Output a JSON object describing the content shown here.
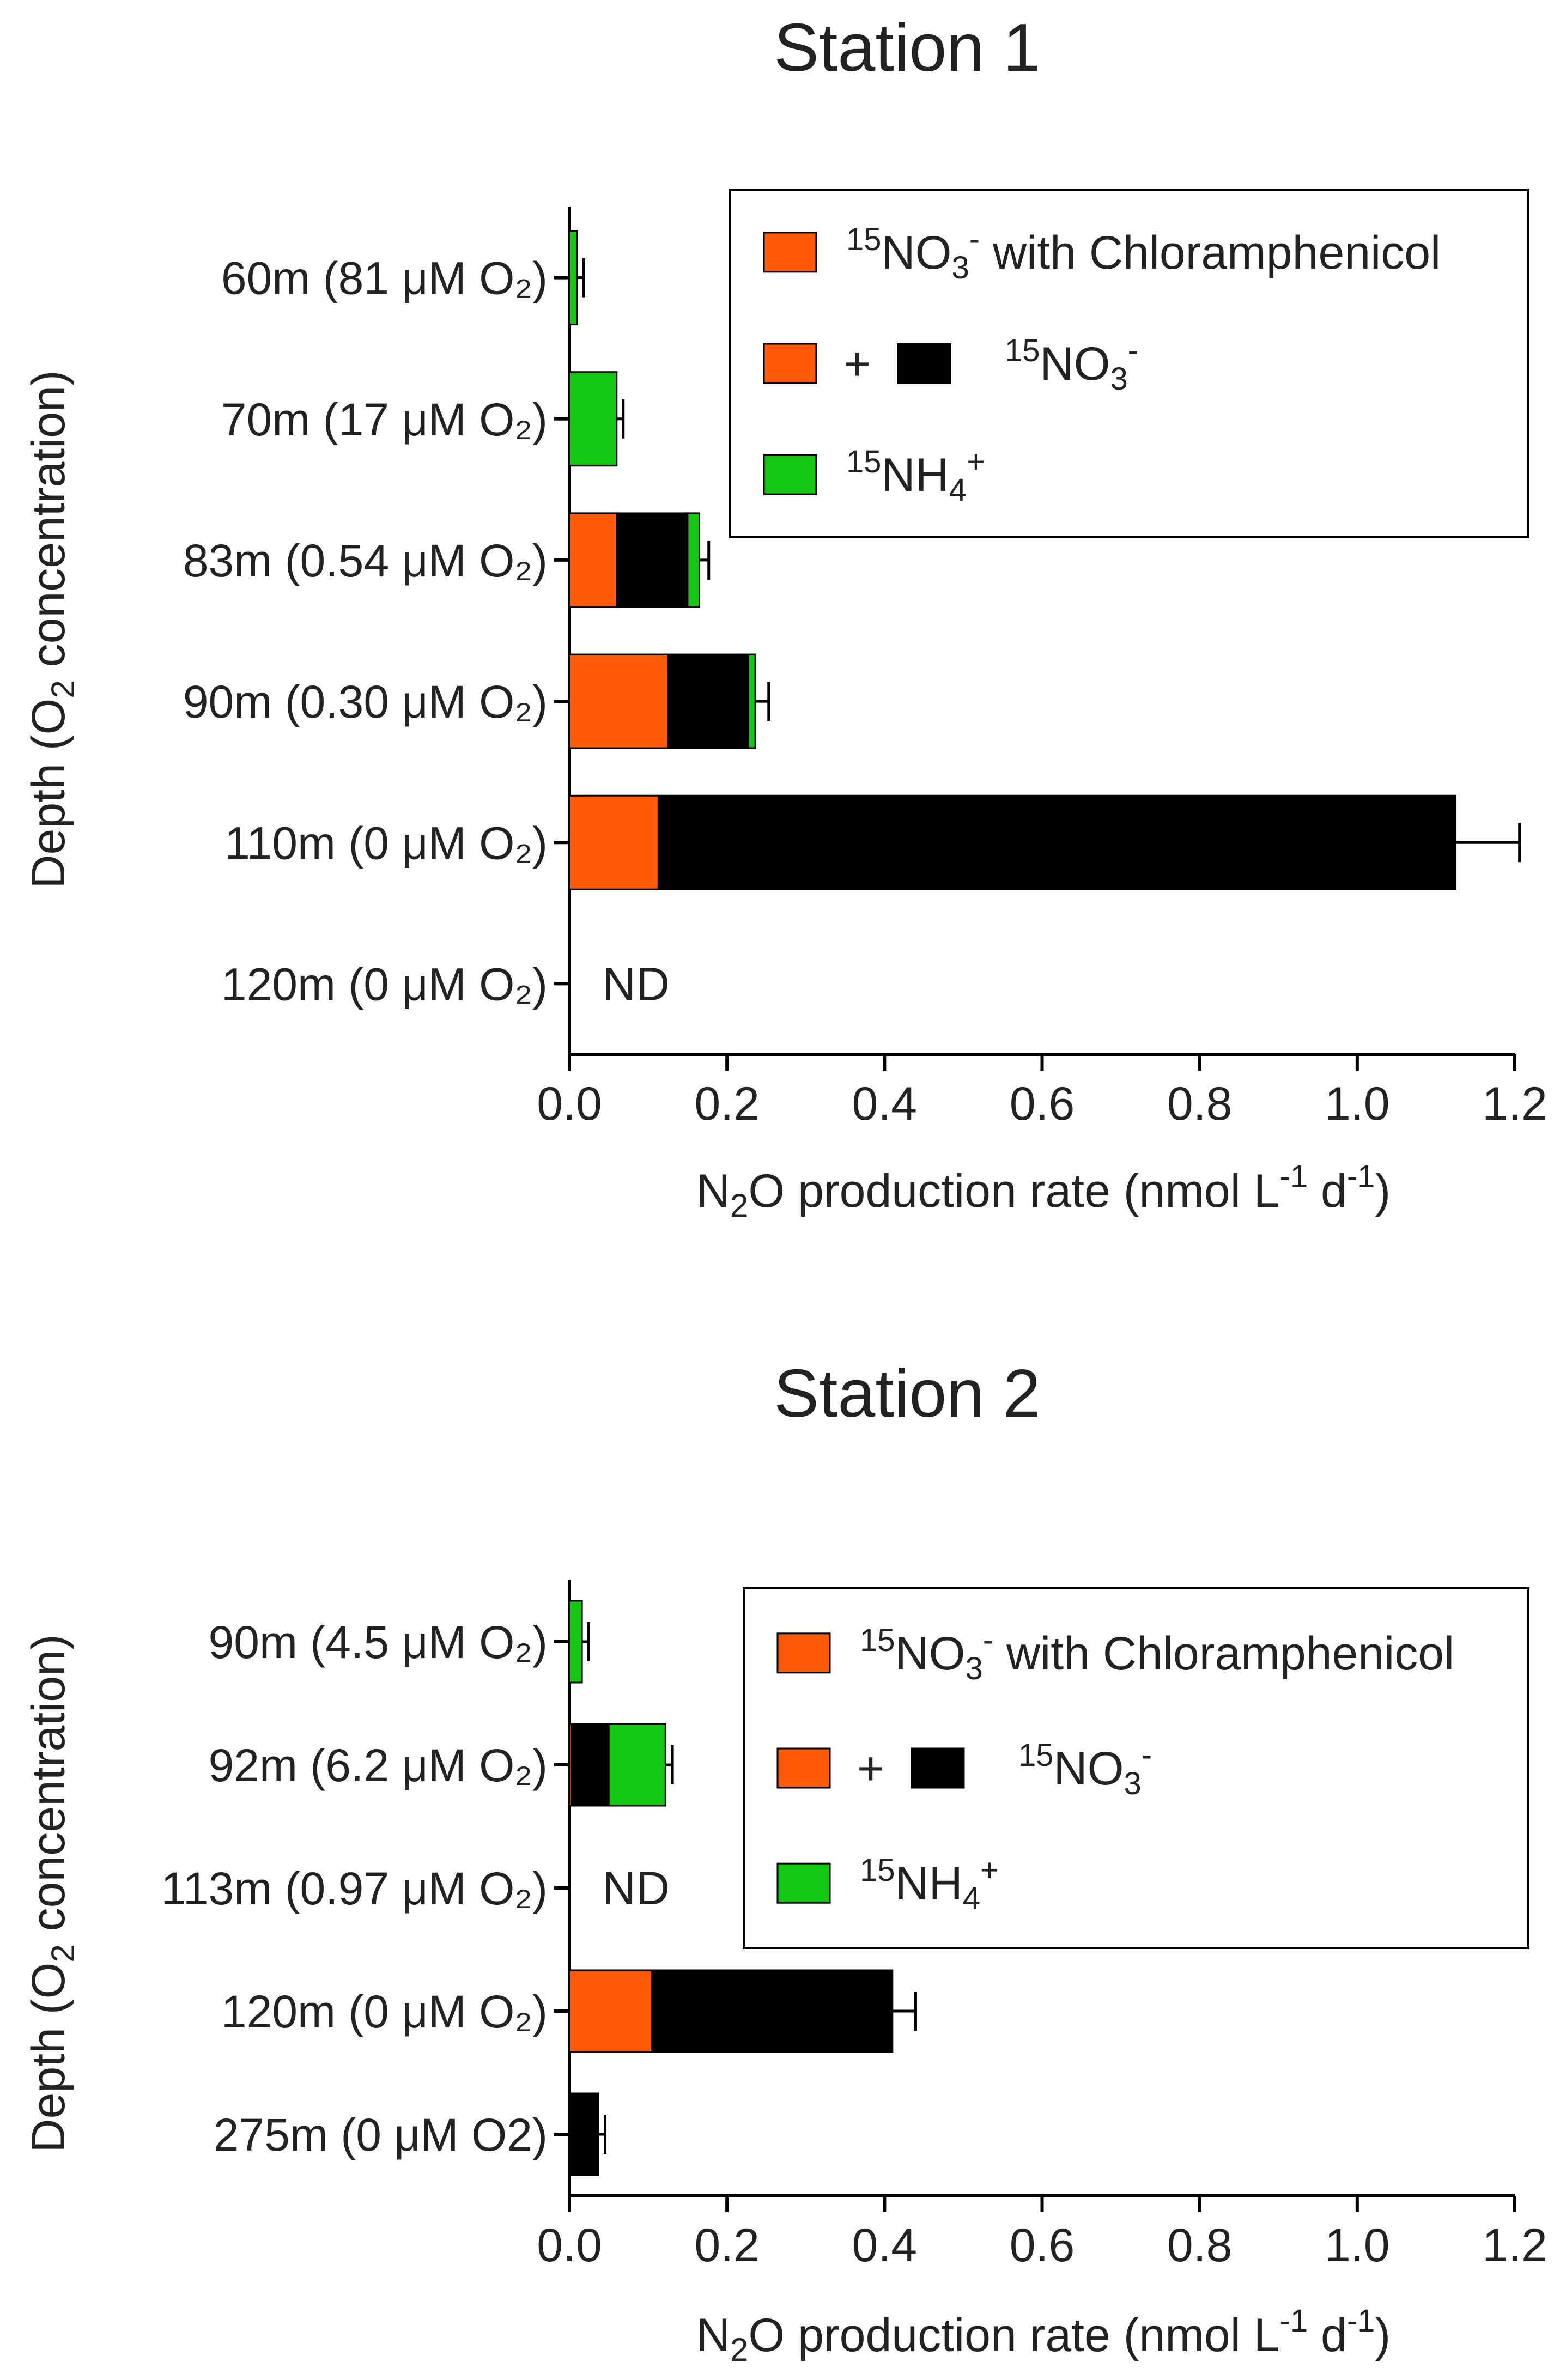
{
  "colors": {
    "chloramphenicol": "#ff5a0a",
    "no3": "#000000",
    "nh4": "#13c713"
  },
  "legend": {
    "item1": {
      "sup": "15",
      "main": "NO",
      "sub": "3",
      "charge": "-",
      "tail": " with Chloramphenicol"
    },
    "item2": {
      "plus": "+",
      "sup": "15",
      "main": "NO",
      "sub": "3",
      "charge": "-"
    },
    "item3": {
      "sup": "15",
      "main": "NH",
      "sub": "4",
      "charge": "+"
    }
  },
  "chart_data": [
    {
      "type": "bar",
      "title": "Station 1",
      "ylabel": {
        "pre": "Depth (O",
        "sub": "2",
        "post": " concentration)"
      },
      "xlabel": {
        "pre": "N",
        "sub1": "2",
        "mid": "O production rate (nmol L",
        "sup1": "-1",
        "mid2": " d",
        "sup2": "-1",
        "post": ")"
      },
      "xlim": [
        0,
        1.2
      ],
      "xticks": [
        "0.0",
        "0.2",
        "0.4",
        "0.6",
        "0.8",
        "1.0",
        "1.2"
      ],
      "categories": [
        "60m (81 μM O₂)",
        "70m (17 μM O₂)",
        "83m (0.54 μM O₂)",
        "90m (0.30 μM O₂)",
        "110m (0 μM O₂)",
        "120m (0 μM O₂)"
      ],
      "series": [
        {
          "name": "15NO3- with Chloramphenicol",
          "values": [
            0,
            0,
            0.06,
            0.125,
            0.113,
            null
          ]
        },
        {
          "name": "15NO3-",
          "values": [
            0,
            0,
            0.09,
            0.102,
            1.012,
            null
          ]
        },
        {
          "name": "15NH4+",
          "values": [
            0.01,
            0.06,
            0.015,
            0.009,
            0,
            null
          ]
        }
      ],
      "annotations": [
        {
          "category": "120m (0 μM O₂)",
          "text": "ND"
        }
      ]
    },
    {
      "type": "bar",
      "title": "Station 2",
      "ylabel": {
        "pre": "Depth (O",
        "sub": "2",
        "post": " concentration)"
      },
      "xlabel": {
        "pre": "N",
        "sub1": "2",
        "mid": "O production rate (nmol L",
        "sup1": "-1",
        "mid2": " d",
        "sup2": "-1",
        "post": ")"
      },
      "xlim": [
        0,
        1.2
      ],
      "xticks": [
        "0.0",
        "0.2",
        "0.4",
        "0.6",
        "0.8",
        "1.0",
        "1.2"
      ],
      "categories": [
        "90m (4.5 μM O₂)",
        "92m (6.2 μM O₂)",
        "113m (0.97 μM O₂)",
        "120m (0 μM O₂)",
        "275m (0 μM O2)"
      ],
      "series": [
        {
          "name": "15NO3- with Chloramphenicol",
          "values": [
            0,
            0.003,
            null,
            0.105,
            0
          ]
        },
        {
          "name": "15NO3-",
          "values": [
            0,
            0.047,
            null,
            0.305,
            0.037
          ]
        },
        {
          "name": "15NH4+",
          "values": [
            0.016,
            0.072,
            null,
            0,
            0
          ]
        }
      ],
      "annotations": [
        {
          "category": "113m (0.97 μM O₂)",
          "text": "ND"
        }
      ]
    }
  ]
}
